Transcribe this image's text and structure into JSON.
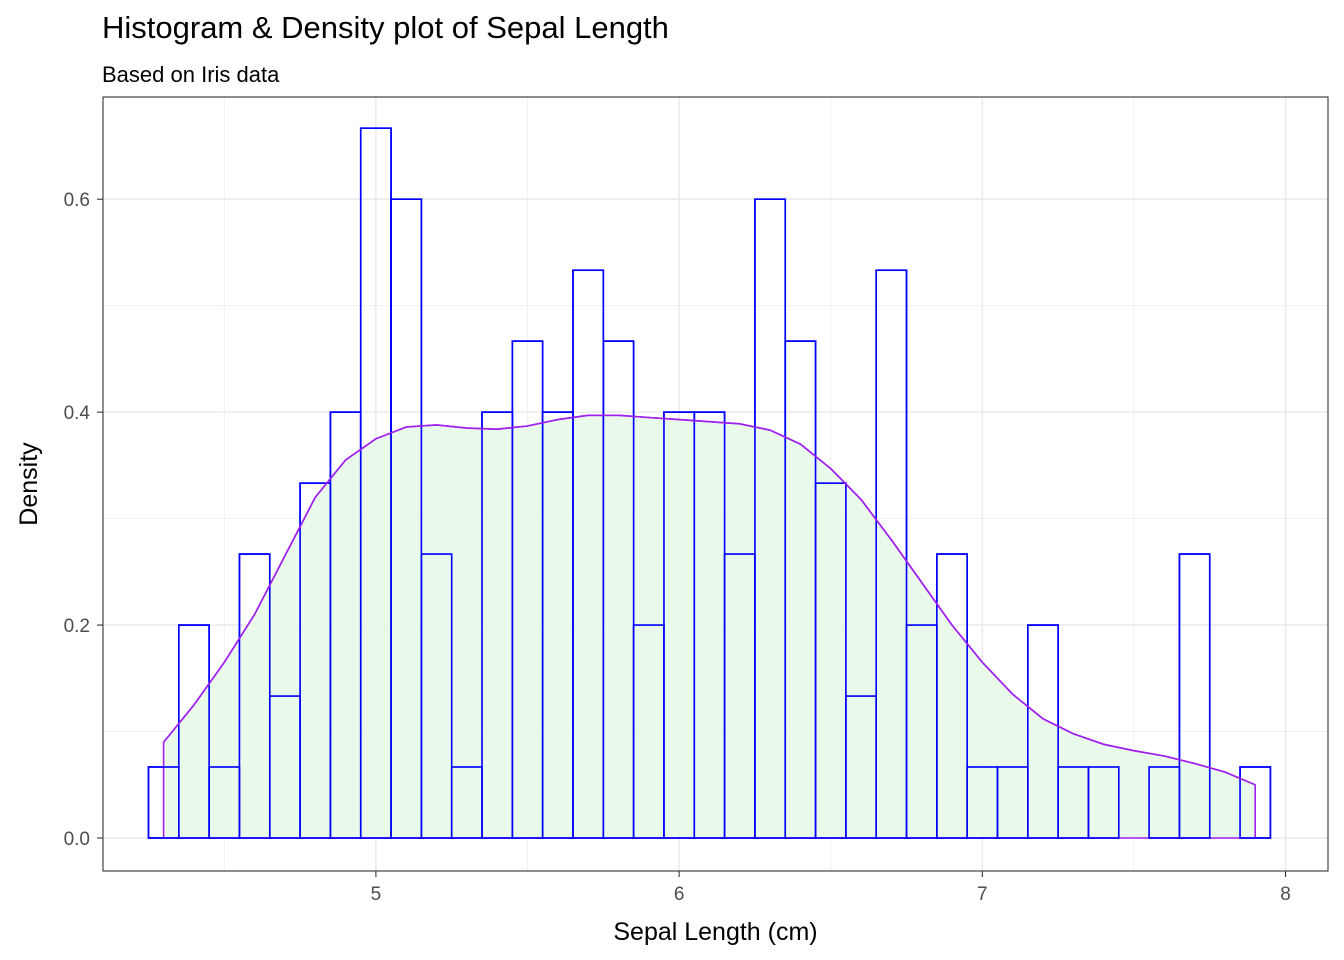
{
  "chart_data": {
    "type": "bar",
    "title": "Histogram & Density plot of Sepal Length",
    "subtitle": "Based on Iris data",
    "xlabel": "Sepal Length (cm)",
    "ylabel": "Density",
    "xlim": [
      4.1,
      8.14
    ],
    "ylim": [
      -0.031,
      0.696
    ],
    "x_ticks": [
      5,
      6,
      7,
      8
    ],
    "y_ticks": [
      0.0,
      0.2,
      0.4,
      0.6
    ],
    "y_tick_labels": [
      "0.0",
      "0.2",
      "0.4",
      "0.6"
    ],
    "x_minor_ticks": [
      4.5,
      5.5,
      6.5,
      7.5
    ],
    "y_minor_ticks": [
      0.1,
      0.3,
      0.5
    ],
    "grid": true,
    "colors": {
      "bar_outline": "#0000ff",
      "bar_fill": "#ffffff",
      "density_line": "#a020f0",
      "density_fill": "#e6f9e6",
      "grid": "#ebebeb",
      "panel_border": "#333333"
    },
    "histogram": {
      "bin_width": 0.1,
      "bins": [
        {
          "x": 4.3,
          "density": 0.0667
        },
        {
          "x": 4.4,
          "density": 0.2
        },
        {
          "x": 4.5,
          "density": 0.0667
        },
        {
          "x": 4.6,
          "density": 0.2667
        },
        {
          "x": 4.7,
          "density": 0.1333
        },
        {
          "x": 4.8,
          "density": 0.3333
        },
        {
          "x": 4.9,
          "density": 0.4
        },
        {
          "x": 5.0,
          "density": 0.6667
        },
        {
          "x": 5.1,
          "density": 0.6
        },
        {
          "x": 5.2,
          "density": 0.2667
        },
        {
          "x": 5.3,
          "density": 0.0667
        },
        {
          "x": 5.4,
          "density": 0.4
        },
        {
          "x": 5.5,
          "density": 0.4667
        },
        {
          "x": 5.6,
          "density": 0.4
        },
        {
          "x": 5.7,
          "density": 0.5333
        },
        {
          "x": 5.8,
          "density": 0.4667
        },
        {
          "x": 5.9,
          "density": 0.2
        },
        {
          "x": 6.0,
          "density": 0.4
        },
        {
          "x": 6.1,
          "density": 0.4
        },
        {
          "x": 6.2,
          "density": 0.2667
        },
        {
          "x": 6.3,
          "density": 0.6
        },
        {
          "x": 6.4,
          "density": 0.4667
        },
        {
          "x": 6.5,
          "density": 0.3333
        },
        {
          "x": 6.6,
          "density": 0.1333
        },
        {
          "x": 6.7,
          "density": 0.5333
        },
        {
          "x": 6.8,
          "density": 0.2
        },
        {
          "x": 6.9,
          "density": 0.2667
        },
        {
          "x": 7.0,
          "density": 0.0667
        },
        {
          "x": 7.1,
          "density": 0.0667
        },
        {
          "x": 7.2,
          "density": 0.2
        },
        {
          "x": 7.3,
          "density": 0.0667
        },
        {
          "x": 7.4,
          "density": 0.0667
        },
        {
          "x": 7.5,
          "density": 0.0
        },
        {
          "x": 7.6,
          "density": 0.0667
        },
        {
          "x": 7.7,
          "density": 0.2667
        },
        {
          "x": 7.8,
          "density": 0.0
        },
        {
          "x": 7.9,
          "density": 0.0667
        }
      ]
    },
    "density_curve": {
      "x": [
        4.3,
        4.4,
        4.5,
        4.6,
        4.7,
        4.8,
        4.9,
        5.0,
        5.1,
        5.2,
        5.3,
        5.4,
        5.5,
        5.6,
        5.7,
        5.8,
        5.9,
        6.0,
        6.1,
        6.2,
        6.3,
        6.4,
        6.5,
        6.6,
        6.7,
        6.8,
        6.9,
        7.0,
        7.1,
        7.2,
        7.3,
        7.4,
        7.5,
        7.6,
        7.7,
        7.8,
        7.9
      ],
      "y": [
        0.09,
        0.125,
        0.165,
        0.21,
        0.265,
        0.32,
        0.355,
        0.375,
        0.386,
        0.388,
        0.385,
        0.384,
        0.387,
        0.393,
        0.397,
        0.397,
        0.395,
        0.393,
        0.391,
        0.389,
        0.383,
        0.37,
        0.347,
        0.318,
        0.28,
        0.24,
        0.2,
        0.165,
        0.135,
        0.112,
        0.098,
        0.088,
        0.082,
        0.077,
        0.07,
        0.062,
        0.05
      ]
    }
  }
}
